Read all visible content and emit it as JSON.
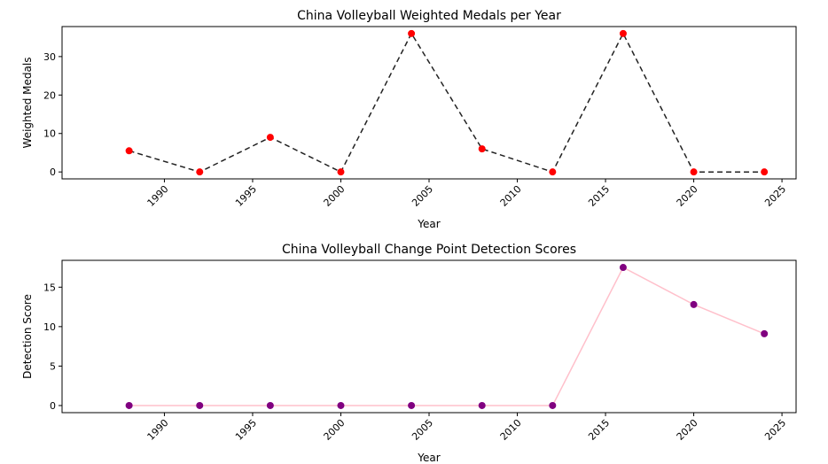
{
  "chart_data": [
    {
      "type": "line",
      "title": "China Volleyball Weighted Medals per Year",
      "xlabel": "Year",
      "ylabel": "Weighted Medals",
      "x": [
        1988,
        1992,
        1996,
        2000,
        2004,
        2008,
        2012,
        2016,
        2020,
        2024
      ],
      "series": [
        {
          "values": [
            5.5,
            0,
            9,
            0,
            36,
            6,
            0,
            36,
            0,
            0
          ]
        }
      ],
      "xlim": [
        1984.2,
        2025.8
      ],
      "ylim": [
        -1.8,
        37.8
      ],
      "xticks": [
        "1990",
        "1995",
        "2000",
        "2005",
        "2010",
        "2015",
        "2020",
        "2025"
      ],
      "yticks": [
        "0",
        "10",
        "20",
        "30"
      ],
      "line_color": "#222222",
      "line_style": "dashed",
      "marker_color": "#ff0000",
      "grid": false
    },
    {
      "type": "line",
      "title": "China Volleyball Change Point Detection Scores",
      "xlabel": "Year",
      "ylabel": "Detection Score",
      "x": [
        1988,
        1992,
        1996,
        2000,
        2004,
        2008,
        2012,
        2016,
        2020,
        2024
      ],
      "series": [
        {
          "values": [
            0,
            0,
            0,
            0,
            0,
            0,
            0,
            17.5,
            12.8,
            9.1
          ]
        }
      ],
      "xlim": [
        1984.2,
        2025.8
      ],
      "ylim": [
        -0.9,
        18.4
      ],
      "xticks": [
        "1990",
        "1995",
        "2000",
        "2005",
        "2010",
        "2015",
        "2020",
        "2025"
      ],
      "yticks": [
        "0",
        "5",
        "10",
        "15"
      ],
      "line_color": "#ffc0cb",
      "line_style": "solid",
      "marker_color": "#800080",
      "grid": false
    }
  ]
}
